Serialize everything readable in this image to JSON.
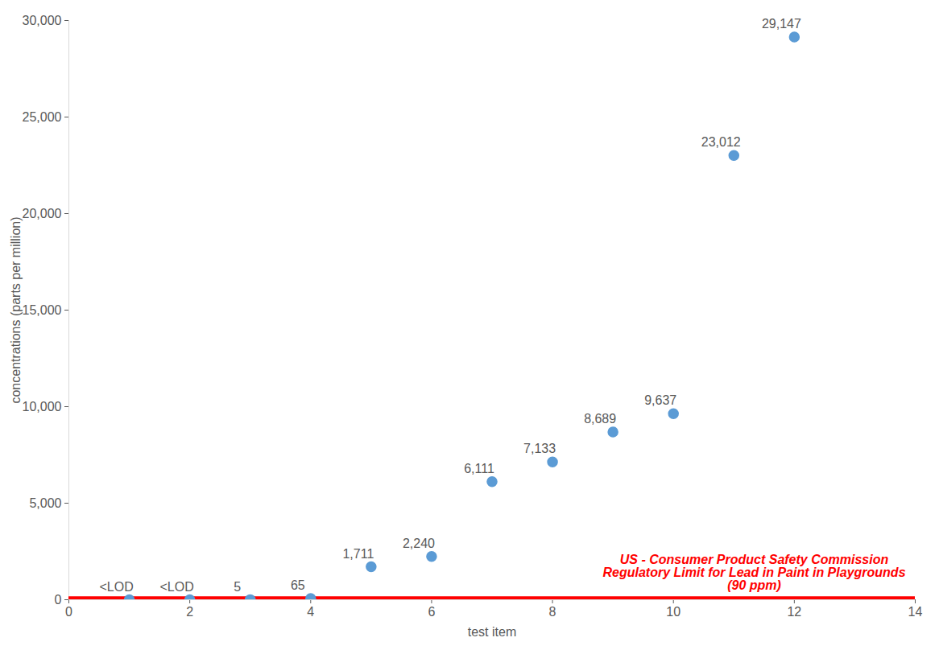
{
  "chart_data": {
    "type": "scatter",
    "x_label": "test item",
    "y_label": "concentrations (parts per million)",
    "x": [
      1,
      2,
      3,
      4,
      5,
      6,
      7,
      8,
      9,
      10,
      11,
      12
    ],
    "values": [
      0,
      0,
      5,
      65,
      1711,
      2240,
      6111,
      7133,
      8689,
      9637,
      23012,
      29147
    ],
    "value_labels": [
      "<LOD",
      "<LOD",
      "5",
      "65",
      "1,711",
      "2,240",
      "6,111",
      "7,133",
      "8,689",
      "9,637",
      "23,012",
      "29,147"
    ],
    "data_labels": true,
    "color": "#5b9bd5",
    "marker": "circle",
    "xlim": [
      0,
      14
    ],
    "xticks": [
      0,
      2,
      4,
      6,
      8,
      10,
      12,
      14
    ],
    "ylim": [
      0,
      30000
    ],
    "yticks": [
      0,
      {
        "value": 5000,
        "label": "5,000"
      },
      {
        "value": 10000,
        "label": "10,000"
      },
      {
        "value": 15000,
        "label": "15,000"
      },
      {
        "value": 20000,
        "label": "20,000"
      },
      {
        "value": 25000,
        "label": "25,000"
      },
      {
        "value": 30000,
        "label": "30,000"
      }
    ],
    "grid": false,
    "reference_lines": [
      {
        "y": 90,
        "label": "US - Consumer Product Safety Commission Regulatory Limit for Lead in Paint in Playgrounds (90 ppm)",
        "color": "#ff0000"
      }
    ]
  }
}
